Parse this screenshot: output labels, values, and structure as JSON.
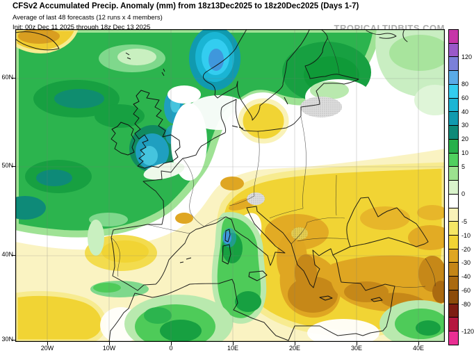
{
  "header": {
    "title": "CFSv2 Accumulated Precip. Anomaly (mm) from 18z13Dec2025 to 18z20Dec2025 (Days 1-7)",
    "subtitle": "Average of last 48 forecasts (12 runs x 4 members)",
    "init_line": "Init: 00z Dec 11 2025 through 18z Dec 13 2025",
    "watermark": "TROPICALTIDBITS.COM"
  },
  "axes": {
    "lat": [
      "60N",
      "50N",
      "40N",
      "30N"
    ],
    "lon": [
      "20W",
      "10W",
      "0",
      "10E",
      "20E",
      "30E",
      "40E"
    ]
  },
  "colorbar": {
    "unit": "mm",
    "labels": [
      "",
      "120",
      "",
      "80",
      "60",
      "40",
      "30",
      "20",
      "10",
      "5",
      "",
      "0",
      "",
      "-5",
      "-10",
      "-20",
      "-30",
      "-40",
      "-60",
      "-80",
      "",
      "-120"
    ],
    "colors": [
      "#c636a8",
      "#9a59c9",
      "#7b80d9",
      "#5aabe8",
      "#33cdf0",
      "#1ab5d4",
      "#109aaf",
      "#0e8a78",
      "#27b04b",
      "#50d05f",
      "#9ce28f",
      "#d9f3cb",
      "#ffffff",
      "#f9f2b8",
      "#f5e765",
      "#f1d434",
      "#dfa622",
      "#c48618",
      "#aa6a10",
      "#8c4c0a",
      "#7d1d12",
      "#b5173f",
      "#ea2f93"
    ]
  },
  "palette": {
    "positive_green": "#2cb44e",
    "strong_positive_teal": "#109aaf",
    "strong_positive_cyan": "#33cdf0",
    "negative_gold": "#f1d434",
    "strong_negative_amber": "#c48618",
    "neutral_white": "#ffffff"
  }
}
